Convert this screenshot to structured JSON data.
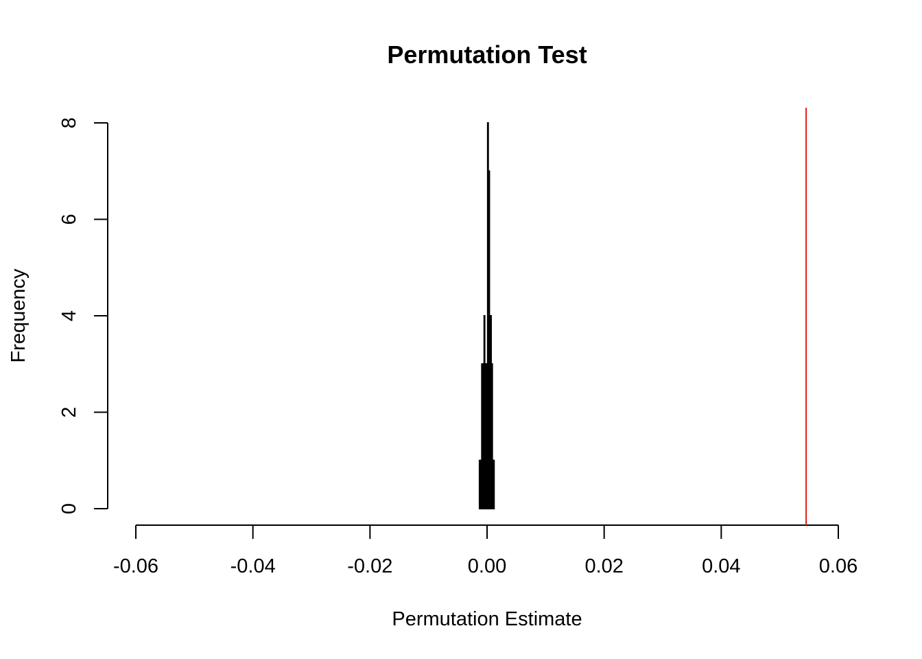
{
  "chart_data": {
    "type": "bar",
    "title": "Permutation Test",
    "xlabel": "Permutation Estimate",
    "ylabel": "Frequency",
    "xlim": [
      -0.06,
      0.06
    ],
    "ylim": [
      0,
      8
    ],
    "x_ticks": [
      -0.06,
      -0.04,
      -0.02,
      0.0,
      0.02,
      0.04,
      0.06
    ],
    "x_tick_labels": [
      "-0.06",
      "-0.04",
      "-0.02",
      "0.00",
      "0.02",
      "0.04",
      "0.06"
    ],
    "y_ticks": [
      0,
      2,
      4,
      6,
      8
    ],
    "y_tick_labels": [
      "0",
      "2",
      "4",
      "6",
      "8"
    ],
    "bin_width": 0.0001,
    "bins": [
      {
        "x0": -0.0013,
        "count": 1
      },
      {
        "x0": -0.0012,
        "count": 0
      },
      {
        "x0": -0.0011,
        "count": 1
      },
      {
        "x0": -0.001,
        "count": 1
      },
      {
        "x0": -0.0009,
        "count": 3
      },
      {
        "x0": -0.0008,
        "count": 2
      },
      {
        "x0": -0.0007,
        "count": 3
      },
      {
        "x0": -0.0006,
        "count": 3
      },
      {
        "x0": -0.0005,
        "count": 4
      },
      {
        "x0": -0.0004,
        "count": 3
      },
      {
        "x0": -0.0003,
        "count": 2
      },
      {
        "x0": -0.0002,
        "count": 3
      },
      {
        "x0": -0.0001,
        "count": 3
      },
      {
        "x0": 0.0,
        "count": 3
      },
      {
        "x0": 0.0001,
        "count": 8
      },
      {
        "x0": 0.0002,
        "count": 3
      },
      {
        "x0": 0.0003,
        "count": 7
      },
      {
        "x0": 0.0004,
        "count": 4
      },
      {
        "x0": 0.0005,
        "count": 3
      },
      {
        "x0": 0.0006,
        "count": 4
      },
      {
        "x0": 0.0007,
        "count": 3
      },
      {
        "x0": 0.0008,
        "count": 3
      },
      {
        "x0": 0.0009,
        "count": 1
      },
      {
        "x0": 0.001,
        "count": 1
      },
      {
        "x0": 0.0011,
        "count": 1
      }
    ],
    "reference_line": {
      "x": 0.0545,
      "color": "#e41a1c"
    }
  }
}
